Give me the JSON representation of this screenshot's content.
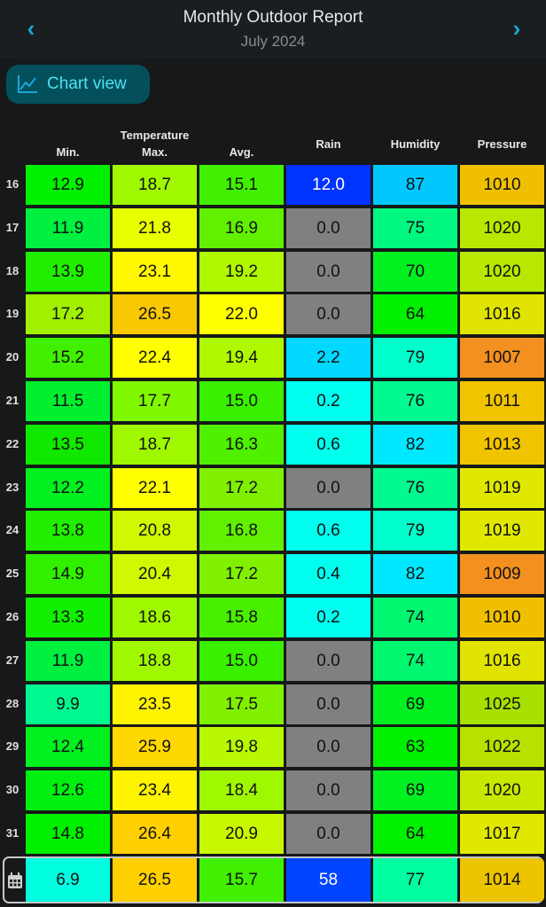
{
  "header": {
    "title": "Monthly Outdoor Report",
    "subtitle": "July 2024",
    "prev_icon": "chevron-left-icon",
    "next_icon": "chevron-right-icon"
  },
  "chart_button": {
    "label": "Chart view",
    "icon": "line-chart-icon"
  },
  "columns": {
    "group_label": "Temperature",
    "min": "Min.",
    "max": "Max.",
    "avg": "Avg.",
    "rain": "Rain",
    "humidity": "Humidity",
    "pressure": "Pressure"
  },
  "rows": [
    {
      "day": "16",
      "values": [
        "12.9",
        "18.7",
        "15.1",
        "12.0",
        "87",
        "1010"
      ],
      "colors": [
        "#00f000",
        "#a0f800",
        "#40f000",
        "#0033ff",
        "#00c8ff",
        "#f0c000"
      ]
    },
    {
      "day": "17",
      "values": [
        "11.9",
        "21.8",
        "16.9",
        "0.0",
        "75",
        "1020"
      ],
      "colors": [
        "#00f040",
        "#e8ff00",
        "#60f000",
        "#808080",
        "#00f880",
        "#b8e800"
      ]
    },
    {
      "day": "18",
      "values": [
        "13.9",
        "23.1",
        "19.2",
        "0.0",
        "70",
        "1020"
      ],
      "colors": [
        "#20f000",
        "#fff800",
        "#b0f800",
        "#808080",
        "#00f020",
        "#b8e800"
      ]
    },
    {
      "day": "19",
      "values": [
        "17.2",
        "26.5",
        "22.0",
        "0.0",
        "64",
        "1016"
      ],
      "colors": [
        "#a0f000",
        "#f8c800",
        "#ffff00",
        "#808080",
        "#00f000",
        "#e0e400"
      ]
    },
    {
      "day": "20",
      "values": [
        "15.2",
        "22.4",
        "19.4",
        "2.2",
        "79",
        "1007"
      ],
      "colors": [
        "#40f000",
        "#ffff00",
        "#b0f800",
        "#00d8ff",
        "#00ffcc",
        "#f39020"
      ]
    },
    {
      "day": "21",
      "values": [
        "11.5",
        "17.7",
        "15.0",
        "0.2",
        "76",
        "1011"
      ],
      "colors": [
        "#00f030",
        "#80f800",
        "#38f000",
        "#00ffee",
        "#00fa90",
        "#f0c400"
      ]
    },
    {
      "day": "22",
      "values": [
        "13.5",
        "18.7",
        "16.3",
        "0.6",
        "82",
        "1013"
      ],
      "colors": [
        "#10e800",
        "#a0f800",
        "#50f000",
        "#00ffee",
        "#00e8ff",
        "#f0c400"
      ]
    },
    {
      "day": "23",
      "values": [
        "12.2",
        "22.1",
        "17.2",
        "0.0",
        "76",
        "1019"
      ],
      "colors": [
        "#00f020",
        "#ffff00",
        "#80f000",
        "#808080",
        "#00fa90",
        "#e0e800"
      ]
    },
    {
      "day": "24",
      "values": [
        "13.8",
        "20.8",
        "16.8",
        "0.6",
        "79",
        "1019"
      ],
      "colors": [
        "#20f000",
        "#d0f800",
        "#60f000",
        "#00ffee",
        "#00ffcc",
        "#e0e800"
      ]
    },
    {
      "day": "25",
      "values": [
        "14.9",
        "20.4",
        "17.2",
        "0.4",
        "82",
        "1009"
      ],
      "colors": [
        "#30f000",
        "#d0f800",
        "#80f000",
        "#00ffee",
        "#00e8ff",
        "#f39020"
      ]
    },
    {
      "day": "26",
      "values": [
        "13.3",
        "18.6",
        "15.8",
        "0.2",
        "74",
        "1010"
      ],
      "colors": [
        "#10f000",
        "#a0f800",
        "#48f000",
        "#00ffee",
        "#00f870",
        "#f0c000"
      ]
    },
    {
      "day": "27",
      "values": [
        "11.9",
        "18.8",
        "15.0",
        "0.0",
        "74",
        "1016"
      ],
      "colors": [
        "#00f040",
        "#a0f800",
        "#38f000",
        "#808080",
        "#00f870",
        "#e0e400"
      ]
    },
    {
      "day": "28",
      "values": [
        "9.9",
        "23.5",
        "17.5",
        "0.0",
        "69",
        "1025"
      ],
      "colors": [
        "#00f890",
        "#fff400",
        "#80f000",
        "#808080",
        "#00f020",
        "#a8e000"
      ]
    },
    {
      "day": "29",
      "values": [
        "12.4",
        "25.9",
        "19.8",
        "0.0",
        "63",
        "1022"
      ],
      "colors": [
        "#00f020",
        "#ffd800",
        "#b8f800",
        "#808080",
        "#00f000",
        "#b8e000"
      ]
    },
    {
      "day": "30",
      "values": [
        "12.6",
        "23.4",
        "18.4",
        "0.0",
        "69",
        "1020"
      ],
      "colors": [
        "#00f010",
        "#fff400",
        "#a0f800",
        "#808080",
        "#00f020",
        "#c8e800"
      ]
    },
    {
      "day": "31",
      "values": [
        "14.8",
        "26.4",
        "20.9",
        "0.0",
        "64",
        "1017"
      ],
      "colors": [
        "#00f000",
        "#ffd000",
        "#c8f800",
        "#808080",
        "#00f000",
        "#e0e800"
      ]
    }
  ],
  "summary": {
    "icon": "calendar-icon",
    "values": [
      "6.9",
      "26.5",
      "15.7",
      "58",
      "77",
      "1014"
    ],
    "colors": [
      "#00ffe0",
      "#ffd000",
      "#40f000",
      "#0044ff",
      "#00ffa0",
      "#ecc400"
    ]
  }
}
